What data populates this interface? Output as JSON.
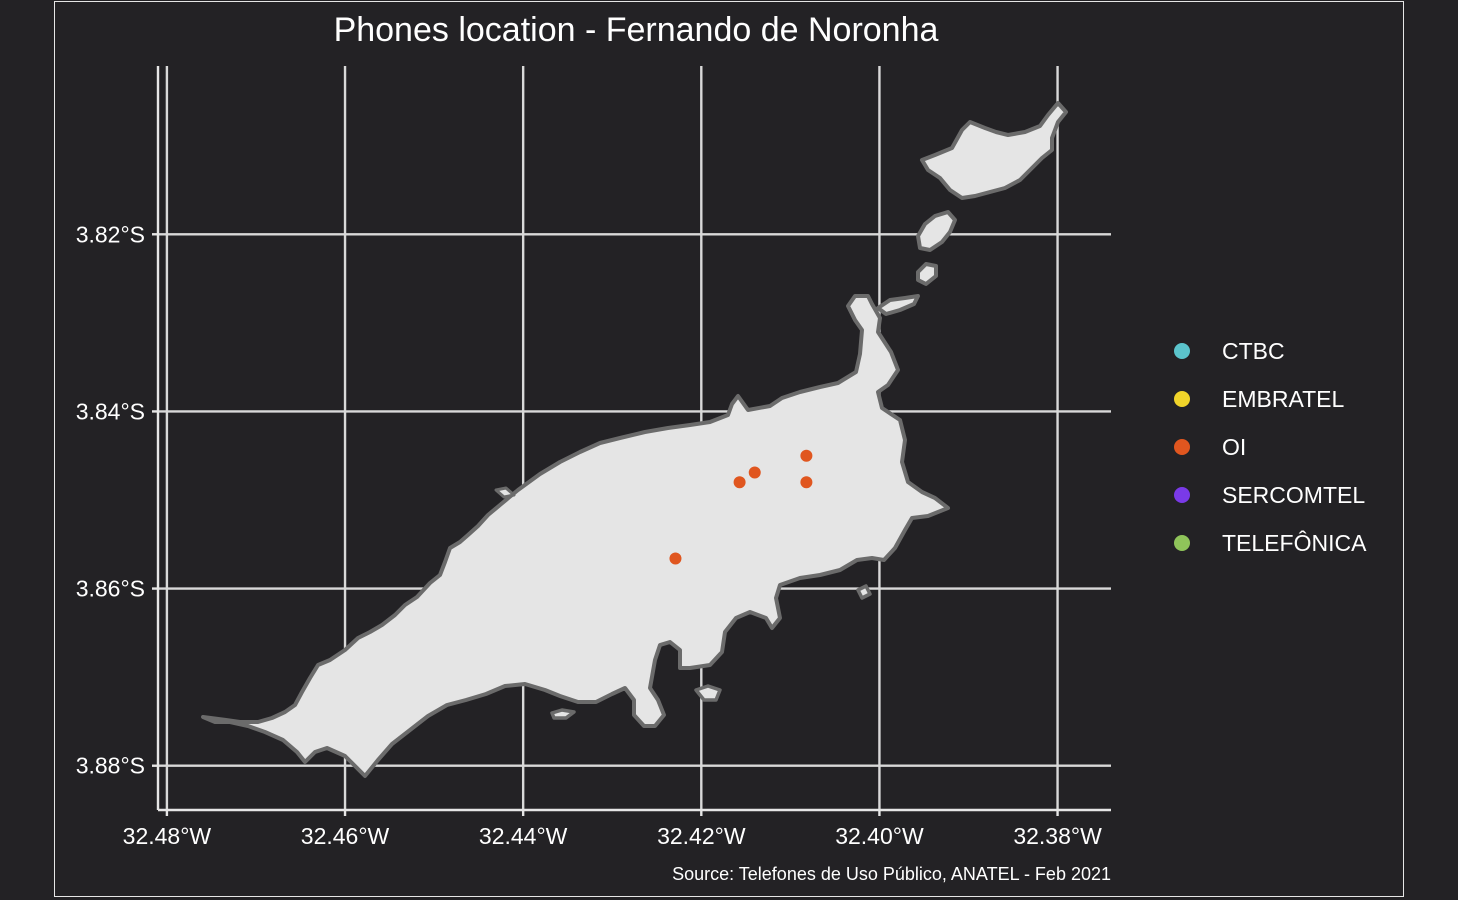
{
  "chart_data": {
    "type": "scatter",
    "map": true,
    "title": "Phones location - Fernando de Noronha",
    "caption": "Source: Telefones de Uso Público, ANATEL - Feb 2021",
    "xlabel": "",
    "ylabel": "",
    "x_ticks": [
      {
        "value": -32.48,
        "label": "32.48°W"
      },
      {
        "value": -32.46,
        "label": "32.46°W"
      },
      {
        "value": -32.44,
        "label": "32.44°W"
      },
      {
        "value": -32.42,
        "label": "32.42°W"
      },
      {
        "value": -32.4,
        "label": "32.40°W"
      },
      {
        "value": -32.38,
        "label": "32.38°W"
      }
    ],
    "y_ticks": [
      {
        "value": -3.82,
        "label": "3.82°S"
      },
      {
        "value": -3.84,
        "label": "3.84°S"
      },
      {
        "value": -3.86,
        "label": "3.86°S"
      },
      {
        "value": -3.88,
        "label": "3.88°S"
      }
    ],
    "xlim": [
      -32.481,
      -32.374
    ],
    "ylim": [
      -3.885,
      -3.801
    ],
    "grid": true,
    "legend_position": "right",
    "series": [
      {
        "name": "CTBC",
        "color": "#5bc4cc",
        "points": []
      },
      {
        "name": "EMBRATEL",
        "color": "#f0d42a",
        "points": []
      },
      {
        "name": "OI",
        "color": "#e0561f",
        "points": [
          {
            "lon": -32.4082,
            "lat": -3.845
          },
          {
            "lon": -32.414,
            "lat": -3.8469
          },
          {
            "lon": -32.4157,
            "lat": -3.848
          },
          {
            "lon": -32.4082,
            "lat": -3.848
          },
          {
            "lon": -32.4229,
            "lat": -3.8566
          }
        ]
      },
      {
        "name": "SERCOMTEL",
        "color": "#7a3ae8",
        "points": []
      },
      {
        "name": "TELEFÔNICA",
        "color": "#8fc45a",
        "points": []
      }
    ],
    "colors": {
      "background": "#232225",
      "land": "#e5e5e5",
      "coastline": "#6b6b6b",
      "grid": "#d9d9d9",
      "text": "#ffffff"
    }
  }
}
